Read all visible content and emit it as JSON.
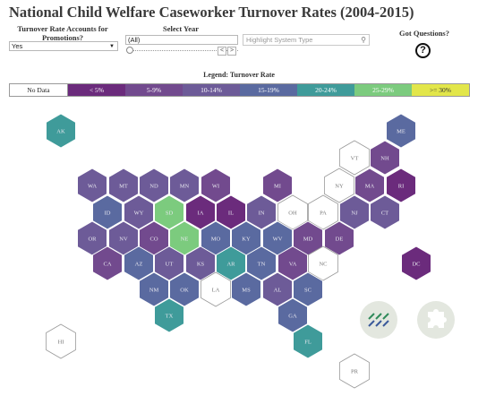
{
  "title": "National Child Welfare Caseworker Turnover Rates (2004-2015)",
  "controls": {
    "promotions_label": "Turnover Rate Accounts for Promotions?",
    "promotions_value": "Yes",
    "year_label": "Select Year",
    "year_value": "(All)",
    "search_placeholder": "Highlight System Type",
    "questions_label": "Got Questions?",
    "question_symbol": "?"
  },
  "legend": {
    "title": "Legend: Turnover Rate",
    "items": [
      {
        "label": "No Data",
        "color": "#ffffff"
      },
      {
        "label": "< 5%",
        "color": "#6b2b7c"
      },
      {
        "label": "5-9%",
        "color": "#724a8e"
      },
      {
        "label": "10-14%",
        "color": "#6d5b98"
      },
      {
        "label": "15-19%",
        "color": "#5a6aa0"
      },
      {
        "label": "20-24%",
        "color": "#3f9b9a"
      },
      {
        "label": "25-29%",
        "color": "#7ccb7e"
      },
      {
        "label": ">= 30%",
        "color": "#e2e64a"
      }
    ]
  },
  "states": [
    {
      "abbr": "AK",
      "color": "#3f9b9a"
    },
    {
      "abbr": "ME",
      "color": "#5a6aa0"
    },
    {
      "abbr": "VT",
      "color": "#ffffff"
    },
    {
      "abbr": "NH",
      "color": "#724a8e"
    },
    {
      "abbr": "WA",
      "color": "#6d5b98"
    },
    {
      "abbr": "MT",
      "color": "#6d5b98"
    },
    {
      "abbr": "ND",
      "color": "#6d5b98"
    },
    {
      "abbr": "MN",
      "color": "#6d5b98"
    },
    {
      "abbr": "WI",
      "color": "#724a8e"
    },
    {
      "abbr": "MI",
      "color": "#724a8e"
    },
    {
      "abbr": "NY",
      "color": "#ffffff"
    },
    {
      "abbr": "MA",
      "color": "#724a8e"
    },
    {
      "abbr": "RI",
      "color": "#6b2b7c"
    },
    {
      "abbr": "ID",
      "color": "#5a6aa0"
    },
    {
      "abbr": "WY",
      "color": "#6d5b98"
    },
    {
      "abbr": "SD",
      "color": "#7ccb7e"
    },
    {
      "abbr": "IA",
      "color": "#6b2b7c"
    },
    {
      "abbr": "IL",
      "color": "#6b2b7c"
    },
    {
      "abbr": "IN",
      "color": "#6d5b98"
    },
    {
      "abbr": "OH",
      "color": "#ffffff"
    },
    {
      "abbr": "PA",
      "color": "#ffffff"
    },
    {
      "abbr": "NJ",
      "color": "#6d5b98"
    },
    {
      "abbr": "CT",
      "color": "#6d5b98"
    },
    {
      "abbr": "OR",
      "color": "#6d5b98"
    },
    {
      "abbr": "NV",
      "color": "#6d5b98"
    },
    {
      "abbr": "CO",
      "color": "#724a8e"
    },
    {
      "abbr": "NE",
      "color": "#7ccb7e"
    },
    {
      "abbr": "MO",
      "color": "#5a6aa0"
    },
    {
      "abbr": "KY",
      "color": "#5a6aa0"
    },
    {
      "abbr": "WV",
      "color": "#5a6aa0"
    },
    {
      "abbr": "MD",
      "color": "#724a8e"
    },
    {
      "abbr": "DE",
      "color": "#724a8e"
    },
    {
      "abbr": "CA",
      "color": "#724a8e"
    },
    {
      "abbr": "AZ",
      "color": "#5a6aa0"
    },
    {
      "abbr": "UT",
      "color": "#6d5b98"
    },
    {
      "abbr": "KS",
      "color": "#6d5b98"
    },
    {
      "abbr": "AR",
      "color": "#3f9b9a"
    },
    {
      "abbr": "TN",
      "color": "#5a6aa0"
    },
    {
      "abbr": "VA",
      "color": "#724a8e"
    },
    {
      "abbr": "NC",
      "color": "#ffffff"
    },
    {
      "abbr": "DC",
      "color": "#6b2b7c"
    },
    {
      "abbr": "NM",
      "color": "#5a6aa0"
    },
    {
      "abbr": "OK",
      "color": "#5a6aa0"
    },
    {
      "abbr": "LA",
      "color": "#ffffff"
    },
    {
      "abbr": "MS",
      "color": "#5a6aa0"
    },
    {
      "abbr": "AL",
      "color": "#6d5b98"
    },
    {
      "abbr": "SC",
      "color": "#5a6aa0"
    },
    {
      "abbr": "TX",
      "color": "#3f9b9a"
    },
    {
      "abbr": "GA",
      "color": "#5a6aa0"
    },
    {
      "abbr": "FL",
      "color": "#3f9b9a"
    },
    {
      "abbr": "HI",
      "color": "#ffffff"
    },
    {
      "abbr": "PR",
      "color": "#ffffff"
    }
  ],
  "bottom_icons": [
    "tableau-logo-icon",
    "puzzle-icon"
  ]
}
